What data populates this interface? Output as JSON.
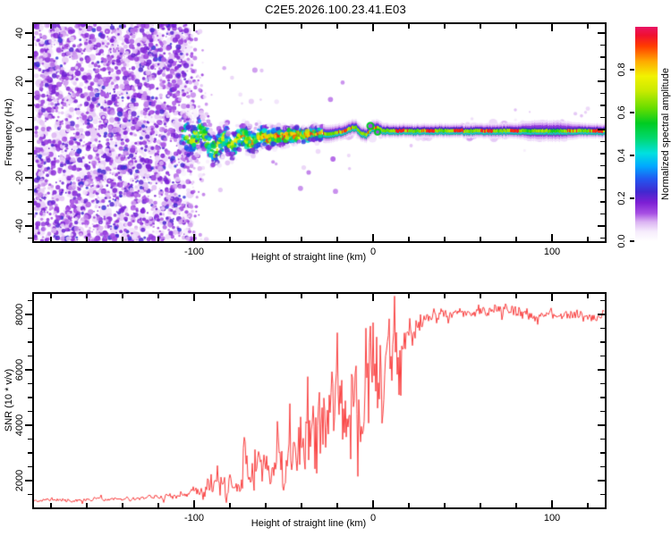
{
  "title": "C2E5.2026.100.23.41.E03",
  "colors": {
    "trace_red": "#fa4242",
    "axis_black": "#000000",
    "ridge_navy": "#2a28c8",
    "background": "#ffffff"
  },
  "colorbar": {
    "label": "Normalized spectral amplitude",
    "ticks": [
      "0.0",
      "0.2",
      "0.4",
      "0.6",
      "0.8"
    ],
    "tick_values": [
      0.0,
      0.2,
      0.4,
      0.6,
      0.8
    ],
    "range": [
      0,
      1
    ],
    "stops": [
      [
        0.0,
        "#ffffff"
      ],
      [
        0.045,
        "#f6ecfc"
      ],
      [
        0.09,
        "#dbb3f2"
      ],
      [
        0.13,
        "#a74fe3"
      ],
      [
        0.18,
        "#7d1fd4"
      ],
      [
        0.23,
        "#4128cf"
      ],
      [
        0.29,
        "#2257f0"
      ],
      [
        0.35,
        "#00a8ff"
      ],
      [
        0.41,
        "#00e0e0"
      ],
      [
        0.48,
        "#00d86e"
      ],
      [
        0.55,
        "#00cc22"
      ],
      [
        0.62,
        "#66dd00"
      ],
      [
        0.7,
        "#c8ea00"
      ],
      [
        0.77,
        "#f2f200"
      ],
      [
        0.84,
        "#ffa800"
      ],
      [
        0.91,
        "#ff3c00"
      ],
      [
        0.96,
        "#f01030"
      ],
      [
        1.0,
        "#e81464"
      ]
    ]
  },
  "chart_data": [
    {
      "type": "heatmap",
      "title": "C2E5.2026.100.23.41.E03",
      "xlabel": "Height of straight line (km)",
      "ylabel": "Frequency (Hz)",
      "xlim": [
        -189.5,
        129.5
      ],
      "ylim": [
        -46.3,
        43.7
      ],
      "x_major_ticks": [
        -100,
        0,
        100
      ],
      "x_major_labels": [
        "-100",
        "0",
        "100"
      ],
      "x_minor_step": 20,
      "y_major_ticks": [
        40,
        20,
        0,
        -20,
        -40
      ],
      "y_major_labels": [
        "40",
        "20",
        "0",
        "-20",
        "-40"
      ],
      "y_minor_step": 5,
      "grid": false,
      "legend": "colorbar-right",
      "noise_region": {
        "x_start_km": -189.5,
        "x_end_km": -104,
        "blob_count": 2400,
        "amplitude_range": [
          0.04,
          0.2
        ]
      },
      "ridge_points_km_hz_amp_spread": [
        [
          -106,
          -1,
          0.5,
          9
        ],
        [
          -103,
          -3.5,
          0.55,
          8.5
        ],
        [
          -100,
          -5,
          0.62,
          8
        ],
        [
          -97,
          0.5,
          0.6,
          7.5
        ],
        [
          -94,
          -2,
          0.68,
          7
        ],
        [
          -91,
          -7,
          0.64,
          7
        ],
        [
          -88,
          -9,
          0.7,
          6.5
        ],
        [
          -85,
          -5,
          0.74,
          6
        ],
        [
          -82,
          -3,
          0.7,
          6
        ],
        [
          -79,
          -7,
          0.74,
          5.5
        ],
        [
          -76,
          -5,
          0.7,
          5
        ],
        [
          -73,
          -2.5,
          0.76,
          5
        ],
        [
          -70,
          -4,
          0.8,
          5
        ],
        [
          -67,
          -6,
          0.76,
          4.8
        ],
        [
          -64,
          -3,
          0.8,
          4.5
        ],
        [
          -61,
          -2,
          0.82,
          4.4
        ],
        [
          -58,
          -4,
          0.85,
          4.2
        ],
        [
          -55,
          -3,
          0.82,
          4
        ],
        [
          -52,
          -2.5,
          0.9,
          3.8
        ],
        [
          -49,
          -3,
          0.95,
          3.6
        ],
        [
          -46,
          -2,
          0.9,
          3.3
        ],
        [
          -43,
          -2.5,
          0.95,
          3.2
        ],
        [
          -40,
          -2,
          0.96,
          3
        ],
        [
          -37,
          -2.5,
          0.9,
          3
        ],
        [
          -34,
          -1.5,
          0.86,
          3
        ],
        [
          -31,
          -2,
          0.9,
          2.9
        ],
        [
          -28,
          -1.5,
          0.95,
          2.8
        ],
        [
          -25,
          -2,
          0.9,
          2.8
        ],
        [
          -22,
          -1.5,
          0.96,
          2.7
        ],
        [
          -19,
          -1,
          0.9,
          2.6
        ],
        [
          -16,
          -0.5,
          0.92,
          2.5
        ],
        [
          -13,
          0.5,
          0.86,
          2.5
        ],
        [
          -10,
          1,
          0.9,
          2.5
        ],
        [
          -7,
          -1.5,
          0.96,
          2.5
        ],
        [
          -4,
          -2,
          0.9,
          2.5
        ],
        [
          -1,
          0.5,
          0.84,
          2.5
        ],
        [
          2,
          1,
          0.8,
          2.5
        ],
        [
          5,
          -0.5,
          0.88,
          2.3
        ],
        [
          10,
          -0.5,
          0.96,
          2.2
        ],
        [
          20,
          -0.5,
          0.9,
          2.2
        ],
        [
          30,
          -0.5,
          0.96,
          2.2
        ],
        [
          40,
          -0.5,
          0.92,
          2.2
        ],
        [
          50,
          -0.5,
          0.97,
          2.2
        ],
        [
          60,
          -0.5,
          0.9,
          2.3
        ],
        [
          70,
          -0.5,
          0.95,
          2.4
        ],
        [
          80,
          -0.5,
          0.9,
          2.4
        ],
        [
          86,
          -0.5,
          0.78,
          3
        ],
        [
          92,
          -0.5,
          0.72,
          3.3
        ],
        [
          98,
          -0.5,
          0.75,
          3.2
        ],
        [
          104,
          -0.5,
          0.72,
          3.3
        ],
        [
          110,
          -0.5,
          0.85,
          2.8
        ],
        [
          116,
          -0.5,
          0.95,
          2.4
        ],
        [
          122,
          -0.5,
          0.97,
          2.3
        ],
        [
          129.5,
          -0.5,
          0.95,
          2.3
        ]
      ],
      "puffs_km_r_strength": [
        [
          -12,
          5,
          0.5
        ],
        [
          3,
          6,
          0.5
        ],
        [
          27,
          5,
          0.4
        ],
        [
          55,
          5,
          0.45
        ],
        [
          69,
          6,
          0.5
        ],
        [
          88,
          7,
          0.6
        ],
        [
          97,
          8,
          0.65
        ],
        [
          106,
          7,
          0.6
        ]
      ],
      "rings_km_hz_r": [
        [
          -1.5,
          1.5,
          3.5
        ],
        [
          2.5,
          -1,
          3
        ]
      ]
    },
    {
      "type": "line",
      "xlabel": "Height of straight line (km)",
      "ylabel": "SNR (10 * v/v)",
      "xlim": [
        -189.5,
        129.5
      ],
      "ylim": [
        1030,
        8740
      ],
      "x_major_ticks": [
        -100,
        0,
        100
      ],
      "x_major_labels": [
        "-100",
        "0",
        "100"
      ],
      "x_minor_step": 20,
      "y_major_ticks": [
        2000,
        4000,
        6000,
        8000
      ],
      "y_major_labels": [
        "2000",
        "4000",
        "6000",
        "8000"
      ],
      "y_minor_step": 500,
      "grid": false,
      "series": [
        {
          "name": "SNR",
          "color": "#fa4242",
          "envelope_km_base_noise": [
            [
              -190,
              1300,
              130
            ],
            [
              -170,
              1300,
              130
            ],
            [
              -150,
              1330,
              140
            ],
            [
              -132,
              1350,
              140
            ],
            [
              -118,
              1380,
              160
            ],
            [
              -108,
              1460,
              220
            ],
            [
              -102,
              1540,
              300
            ],
            [
              -97,
              1620,
              420
            ],
            [
              -93,
              1700,
              520
            ],
            [
              -89,
              1950,
              1150
            ],
            [
              -86,
              1750,
              700
            ],
            [
              -83,
              1900,
              900
            ],
            [
              -80,
              1800,
              750
            ],
            [
              -77,
              1700,
              500
            ],
            [
              -74,
              1950,
              1100
            ],
            [
              -71,
              2050,
              1150
            ],
            [
              -68,
              2050,
              1250
            ],
            [
              -65,
              2100,
              1100
            ],
            [
              -62,
              2200,
              1250
            ],
            [
              -59,
              2400,
              1450
            ],
            [
              -56,
              2250,
              1250
            ],
            [
              -53,
              2600,
              1650
            ],
            [
              -50,
              2450,
              1450
            ],
            [
              -47,
              2850,
              1850
            ],
            [
              -44,
              2700,
              1700
            ],
            [
              -41,
              3050,
              2050
            ],
            [
              -38,
              2950,
              1950
            ],
            [
              -35,
              3450,
              2400
            ],
            [
              -32,
              3300,
              2250
            ],
            [
              -29,
              3900,
              2700
            ],
            [
              -26,
              3800,
              2600
            ],
            [
              -23,
              4300,
              2900
            ],
            [
              -20,
              4500,
              3050
            ],
            [
              -17,
              4300,
              2800
            ],
            [
              -14,
              4900,
              3150
            ],
            [
              -11,
              5100,
              3250
            ],
            [
              -8,
              5200,
              3300
            ],
            [
              -5,
              5400,
              3250
            ],
            [
              -2,
              5600,
              3050
            ],
            [
              1,
              5800,
              2950
            ],
            [
              4,
              6100,
              2650
            ],
            [
              7,
              6300,
              2350
            ],
            [
              10,
              6200,
              2150
            ],
            [
              13,
              6500,
              1850
            ],
            [
              16,
              6800,
              1550
            ],
            [
              19,
              7200,
              1150
            ],
            [
              22,
              7450,
              850
            ],
            [
              25,
              7700,
              600
            ],
            [
              28,
              7900,
              450
            ],
            [
              32,
              7980,
              370
            ],
            [
              36,
              8020,
              330
            ],
            [
              40,
              8060,
              320
            ],
            [
              45,
              8020,
              300
            ],
            [
              50,
              8060,
              300
            ],
            [
              55,
              8020,
              320
            ],
            [
              60,
              8060,
              340
            ],
            [
              65,
              8120,
              360
            ],
            [
              70,
              8160,
              400
            ],
            [
              75,
              8120,
              450
            ],
            [
              80,
              8060,
              380
            ],
            [
              85,
              8010,
              330
            ],
            [
              90,
              7960,
              300
            ],
            [
              95,
              8010,
              290
            ],
            [
              100,
              7990,
              280
            ],
            [
              105,
              7960,
              280
            ],
            [
              110,
              7970,
              290
            ],
            [
              115,
              7930,
              300
            ],
            [
              120,
              7910,
              320
            ],
            [
              125,
              7930,
              300
            ],
            [
              129.5,
              7960,
              290
            ]
          ]
        }
      ]
    }
  ]
}
